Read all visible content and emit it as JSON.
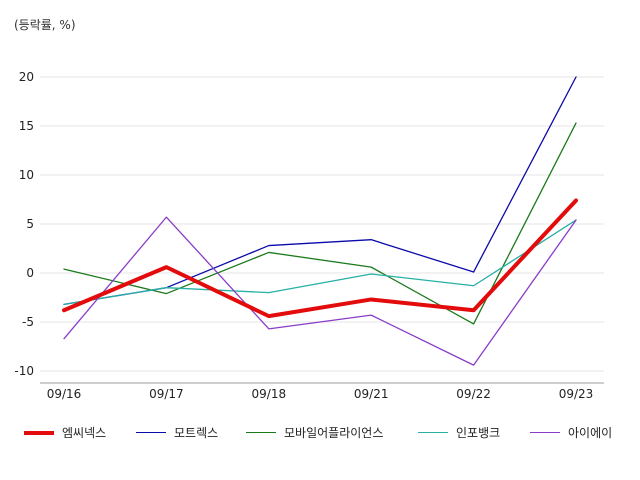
{
  "chart_data": {
    "type": "line",
    "unit_label": "(등락률, %)",
    "categories": [
      "09/16",
      "09/17",
      "09/18",
      "09/21",
      "09/22",
      "09/23"
    ],
    "y_ticks": [
      "20",
      "15",
      "10",
      "5",
      "0",
      "-5",
      "-10"
    ],
    "ylim": [
      -11,
      22
    ],
    "grid": true,
    "legend_position": "bottom",
    "series": [
      {
        "name": "엠씨넥스",
        "color": "#e30b0b",
        "values": [
          -3.8,
          0.6,
          -4.4,
          -2.7,
          -3.8,
          7.4
        ]
      },
      {
        "name": "모트렉스",
        "color": "#0a0aa8",
        "values": [
          -3.2,
          -1.5,
          2.8,
          3.4,
          0.1,
          20.0
        ]
      },
      {
        "name": "모바일어플라이언스",
        "color": "#1a7a1a",
        "values": [
          0.4,
          -2.1,
          2.1,
          0.6,
          -5.2,
          15.3
        ]
      },
      {
        "name": "인포뱅크",
        "color": "#26b0a6",
        "values": [
          -3.2,
          -1.5,
          -2.0,
          -0.1,
          -1.3,
          5.4
        ]
      },
      {
        "name": "아이에이",
        "color": "#8a3cc8",
        "values": [
          -6.7,
          5.7,
          -5.7,
          -4.3,
          -9.4,
          5.4
        ]
      }
    ]
  }
}
